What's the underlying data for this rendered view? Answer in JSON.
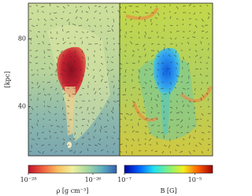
{
  "chart_data": [
    {
      "type": "map",
      "ylabel": "[kpc]",
      "ylim": [
        11,
        101
      ],
      "yticks": [
        40,
        80
      ],
      "colorbar": {
        "label": "ρ [g cm⁻³]",
        "log": true,
        "lim": [
          1e-28,
          5.4e-26
        ],
        "ticks": [
          {
            "value": 1e-28,
            "label": "10⁻²⁸"
          },
          {
            "value": 1e-26,
            "label": "10⁻²⁶"
          }
        ],
        "colors": [
          "#c0102a",
          "#f06040",
          "#f8c060",
          "#f0f0a0",
          "#a8d8a0",
          "#60b0c0",
          "#3060b0"
        ]
      }
    },
    {
      "type": "map",
      "colorbar": {
        "label": "B [G]",
        "log": true,
        "lim": [
          1e-07,
          3.2e-05
        ],
        "ticks": [
          {
            "value": 1e-07,
            "label": "10⁻⁷"
          },
          {
            "value": 1e-05,
            "label": "10⁻⁵"
          }
        ],
        "colors": [
          "#0000a0",
          "#0060ff",
          "#20e0f0",
          "#80f080",
          "#f0f020",
          "#ff6000",
          "#a00000"
        ]
      }
    }
  ]
}
